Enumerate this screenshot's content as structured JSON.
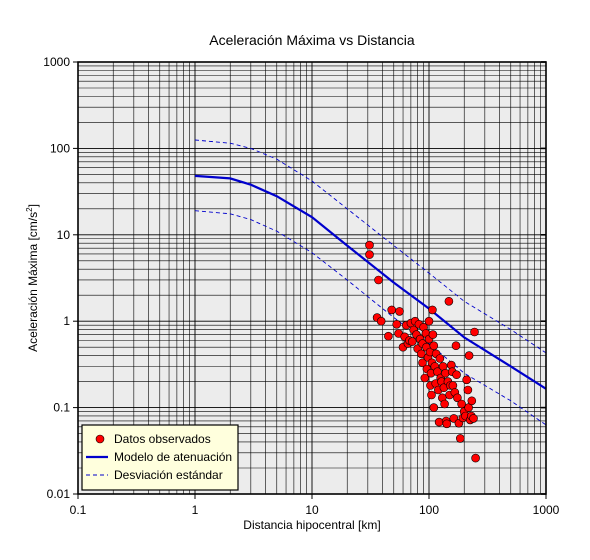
{
  "chart_data": {
    "type": "scatter",
    "title": "Aceleración Máxima vs Distancia",
    "xlabel": "Distancia hipocentral [km]",
    "ylabel_main": "Aceleración Máxima [cm/s",
    "ylabel_sup": "2",
    "ylabel_end": "]",
    "xscale": "log",
    "yscale": "log",
    "xlim": [
      0.1,
      1000
    ],
    "ylim": [
      0.01,
      1000
    ],
    "grid": true,
    "legend_placement": "bottom-left",
    "x_ticks": [
      {
        "v": 0.1,
        "label": "0.1"
      },
      {
        "v": 1,
        "label": "1"
      },
      {
        "v": 10,
        "label": "10"
      },
      {
        "v": 100,
        "label": "100"
      },
      {
        "v": 1000,
        "label": "1000"
      }
    ],
    "y_ticks": [
      {
        "v": 0.01,
        "label": "0.01"
      },
      {
        "v": 0.1,
        "label": "0.1"
      },
      {
        "v": 1,
        "label": "1"
      },
      {
        "v": 10,
        "label": "10"
      },
      {
        "v": 100,
        "label": "100"
      },
      {
        "v": 1000,
        "label": "1000"
      }
    ],
    "series": [
      {
        "name": "Datos observados",
        "kind": "points",
        "color": "#ff0000",
        "points": [
          [
            31,
            7.6
          ],
          [
            31,
            5.9
          ],
          [
            37,
            3.0
          ],
          [
            36,
            1.1
          ],
          [
            39,
            1.0
          ],
          [
            45,
            0.67
          ],
          [
            48,
            1.35
          ],
          [
            53,
            0.92
          ],
          [
            56,
            1.3
          ],
          [
            55,
            0.72
          ],
          [
            60,
            0.5
          ],
          [
            62,
            0.66
          ],
          [
            64,
            0.9
          ],
          [
            66,
            0.55
          ],
          [
            68,
            0.6
          ],
          [
            70,
            0.95
          ],
          [
            72,
            0.58
          ],
          [
            74,
            0.79
          ],
          [
            76,
            1.0
          ],
          [
            78,
            0.7
          ],
          [
            80,
            0.48
          ],
          [
            82,
            0.92
          ],
          [
            84,
            0.62
          ],
          [
            86,
            0.42
          ],
          [
            88,
            0.33
          ],
          [
            88,
            0.55
          ],
          [
            90,
            0.85
          ],
          [
            92,
            0.22
          ],
          [
            94,
            0.72
          ],
          [
            95,
            0.5
          ],
          [
            96,
            0.28
          ],
          [
            98,
            0.38
          ],
          [
            100,
            1.0
          ],
          [
            100,
            0.62
          ],
          [
            102,
            0.44
          ],
          [
            103,
            0.18
          ],
          [
            104,
            0.25
          ],
          [
            105,
            0.14
          ],
          [
            106,
            0.33
          ],
          [
            107,
            1.35
          ],
          [
            108,
            0.7
          ],
          [
            110,
            0.1
          ],
          [
            110,
            0.52
          ],
          [
            112,
            0.3
          ],
          [
            114,
            0.19
          ],
          [
            115,
            0.42
          ],
          [
            118,
            0.26
          ],
          [
            120,
            0.16
          ],
          [
            122,
            0.068
          ],
          [
            124,
            0.37
          ],
          [
            126,
            0.22
          ],
          [
            128,
            0.2
          ],
          [
            130,
            0.13
          ],
          [
            132,
            0.3
          ],
          [
            134,
            0.17
          ],
          [
            136,
            0.11
          ],
          [
            138,
            0.25
          ],
          [
            140,
            0.07
          ],
          [
            142,
            0.065
          ],
          [
            145,
            0.2
          ],
          [
            148,
            1.7
          ],
          [
            150,
            0.14
          ],
          [
            152,
            0.18
          ],
          [
            155,
            0.31
          ],
          [
            158,
            0.26
          ],
          [
            160,
            0.18
          ],
          [
            163,
            0.075
          ],
          [
            166,
            0.15
          ],
          [
            170,
            0.52
          ],
          [
            172,
            0.24
          ],
          [
            175,
            0.13
          ],
          [
            180,
            0.066
          ],
          [
            185,
            0.044
          ],
          [
            190,
            0.11
          ],
          [
            195,
            0.076
          ],
          [
            200,
            0.09
          ],
          [
            205,
            0.08
          ],
          [
            210,
            0.21
          ],
          [
            215,
            0.16
          ],
          [
            218,
            0.1
          ],
          [
            220,
            0.4
          ],
          [
            225,
            0.072
          ],
          [
            230,
            0.08
          ],
          [
            240,
            0.075
          ],
          [
            245,
            0.75
          ],
          [
            250,
            0.026
          ],
          [
            232,
            0.12
          ]
        ]
      },
      {
        "name": "Modelo de atenuación",
        "kind": "line",
        "color": "#0000cc",
        "points": [
          [
            1,
            48
          ],
          [
            2,
            45
          ],
          [
            3,
            38
          ],
          [
            5,
            28
          ],
          [
            10,
            16
          ],
          [
            20,
            7.5
          ],
          [
            50,
            2.8
          ],
          [
            100,
            1.4
          ],
          [
            200,
            0.65
          ],
          [
            500,
            0.3
          ],
          [
            1000,
            0.165
          ]
        ]
      },
      {
        "name": "Desviación estándar",
        "kind": "dashed",
        "color": "#0000cc",
        "points": [
          [
            1,
            125
          ],
          [
            2,
            115
          ],
          [
            3,
            100
          ],
          [
            5,
            75
          ],
          [
            10,
            42
          ],
          [
            20,
            20
          ],
          [
            50,
            7.5
          ],
          [
            100,
            3.6
          ],
          [
            200,
            1.7
          ],
          [
            500,
            0.8
          ],
          [
            1000,
            0.43
          ]
        ]
      },
      {
        "name": "",
        "kind": "dashed",
        "color": "#0000cc",
        "points": [
          [
            1,
            19
          ],
          [
            2,
            17.5
          ],
          [
            3,
            15
          ],
          [
            5,
            11
          ],
          [
            10,
            6.2
          ],
          [
            20,
            3.0
          ],
          [
            50,
            1.1
          ],
          [
            100,
            0.55
          ],
          [
            200,
            0.25
          ],
          [
            500,
            0.12
          ],
          [
            1000,
            0.063
          ]
        ]
      }
    ],
    "legend": [
      {
        "label": "Datos observados",
        "kind": "points"
      },
      {
        "label": "Modelo de atenuación",
        "kind": "line"
      },
      {
        "label": "Desviación estándar",
        "kind": "dashed"
      }
    ]
  }
}
